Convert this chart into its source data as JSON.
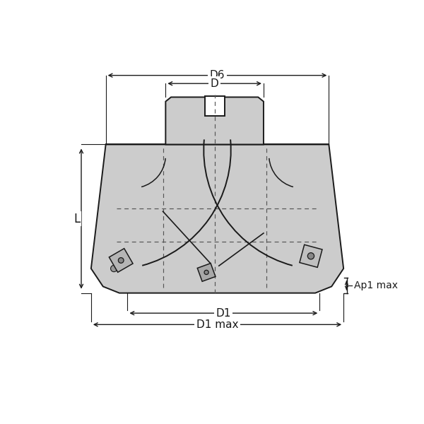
{
  "bg_color": "#ffffff",
  "line_color": "#1a1a1a",
  "body_fill": "#cccccc",
  "body_fill2": "#b8b8b8",
  "dashed_color": "#555555",
  "labels": {
    "D6": "D6",
    "D": "D",
    "L": "L",
    "D1": "D1",
    "D1max": "D1 max",
    "Ap1max": "Ap1 max"
  }
}
